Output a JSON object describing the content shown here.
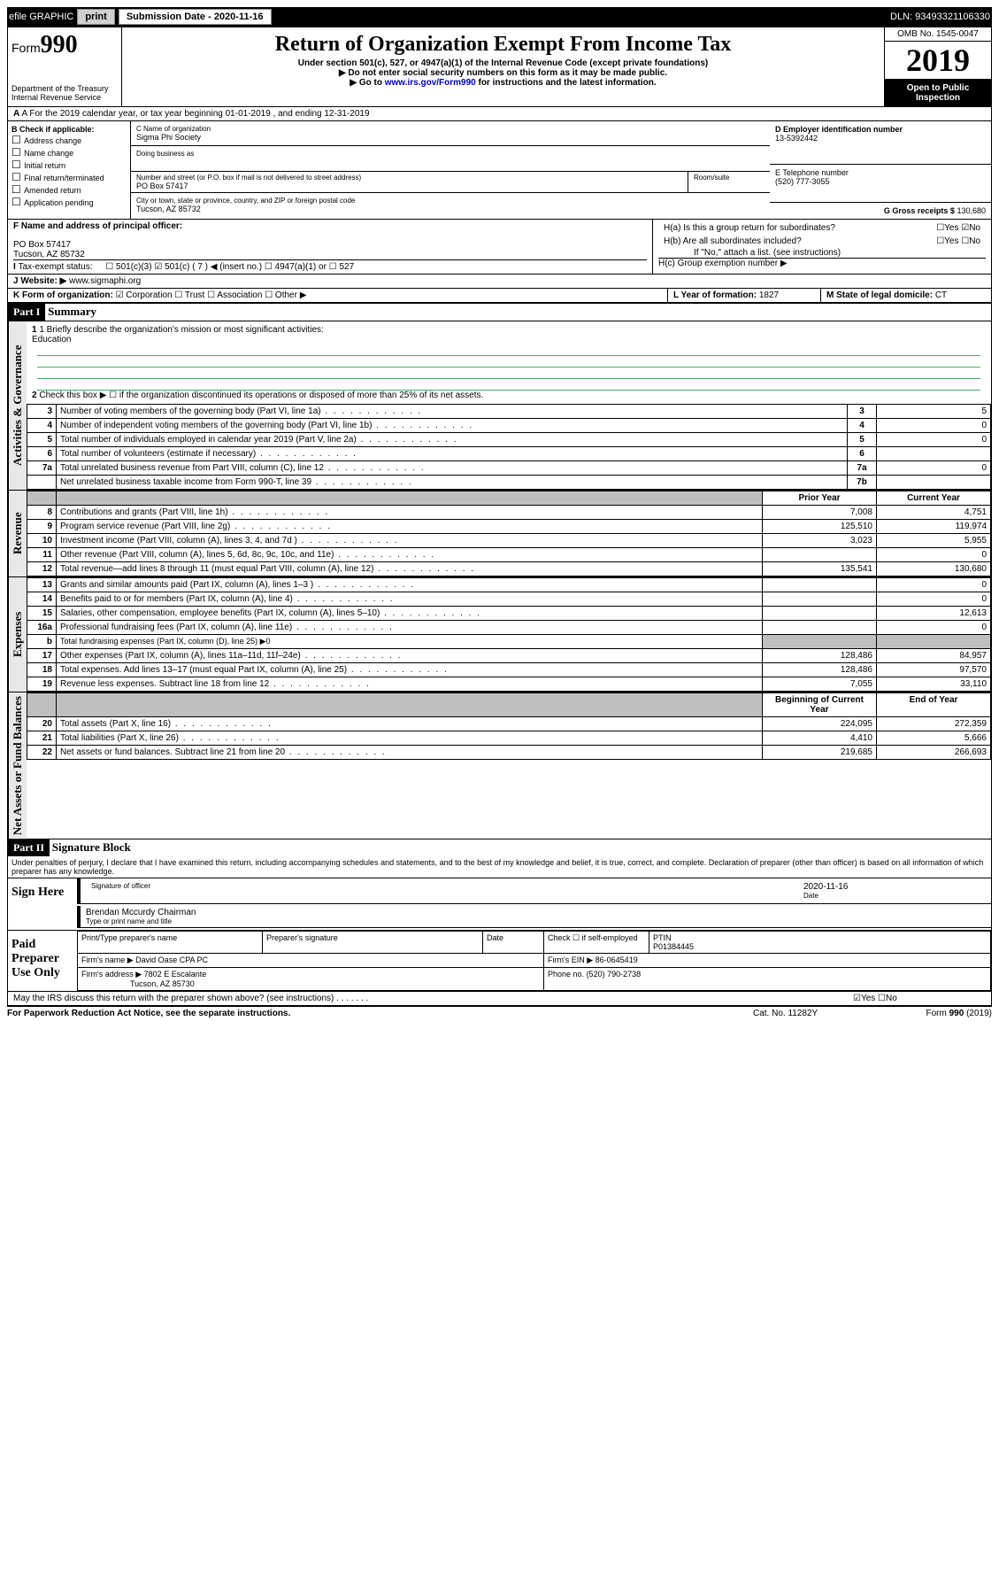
{
  "topbar": {
    "efile": "efile GRAPHIC",
    "print": "print",
    "sub_label": "Submission Date - 2020-11-16",
    "dln": "DLN: 93493321106330"
  },
  "header": {
    "form_word": "Form",
    "form_num": "990",
    "dept": "Department of the Treasury\nInternal Revenue Service",
    "title": "Return of Organization Exempt From Income Tax",
    "sub1": "Under section 501(c), 527, or 4947(a)(1) of the Internal Revenue Code (except private foundations)",
    "sub2": "Do not enter social security numbers on this form as it may be made public.",
    "sub3_a": "Go to ",
    "sub3_link": "www.irs.gov/Form990",
    "sub3_b": " for instructions and the latest information.",
    "omb": "OMB No. 1545-0047",
    "year": "2019",
    "open": "Open to Public Inspection"
  },
  "rowA": "A For the 2019 calendar year, or tax year beginning 01-01-2019   , and ending 12-31-2019",
  "boxB": {
    "intro": "B Check if applicable:",
    "items": [
      "Address change",
      "Name change",
      "Initial return",
      "Final return/terminated",
      "Amended return",
      "Application pending"
    ]
  },
  "boxC": {
    "label": "C Name of organization",
    "name": "Sigma Phi Society",
    "dba": "Doing business as",
    "addr_label": "Number and street (or P.O. box if mail is not delivered to street address)",
    "room": "Room/suite",
    "addr": "PO Box 57417",
    "city_label": "City or town, state or province, country, and ZIP or foreign postal code",
    "city": "Tucson, AZ  85732"
  },
  "boxD": {
    "label": "D Employer identification number",
    "val": "13-5392442"
  },
  "boxE": {
    "label": "E Telephone number",
    "val": "(520) 777-3055"
  },
  "boxG": {
    "label": "G Gross receipts $",
    "val": "130,680"
  },
  "boxF": {
    "label": "F  Name and address of principal officer:",
    "addr1": "PO Box 57417",
    "addr2": "Tucson, AZ  85732"
  },
  "boxH": {
    "a": "H(a)  Is this a group return for subordinates?",
    "a_yn": "☐Yes  ☑No",
    "b": "H(b)  Are all subordinates included?",
    "b_yn": "☐Yes  ☐No",
    "b_note": "If \"No,\" attach a list. (see instructions)",
    "c": "H(c)  Group exemption number ▶"
  },
  "boxI": {
    "label": "Tax-exempt status:",
    "opts": "☐ 501(c)(3)    ☑  501(c) ( 7 ) ◀ (insert no.)    ☐ 4947(a)(1) or   ☐ 527"
  },
  "boxJ": {
    "label": "J   Website: ▶",
    "val": "www.sigmaphi.org"
  },
  "boxK": {
    "label": "K Form of organization:",
    "opts": "☑ Corporation  ☐ Trust  ☐ Association  ☐ Other ▶"
  },
  "boxL": {
    "label": "L Year of formation:",
    "val": "1827"
  },
  "boxM": {
    "label": "M State of legal domicile:",
    "val": "CT"
  },
  "part1": {
    "hd": "Part I",
    "title": "Summary"
  },
  "summary": {
    "q1": "1  Briefly describe the organization's mission or most significant activities:",
    "q1a": "Education",
    "q2": "Check this box ▶ ☐  if the organization discontinued its operations or disposed of more than 25% of its net assets.",
    "lines": [
      {
        "n": "3",
        "d": "Number of voting members of the governing body (Part VI, line 1a)",
        "b": "3",
        "v": "5"
      },
      {
        "n": "4",
        "d": "Number of independent voting members of the governing body (Part VI, line 1b)",
        "b": "4",
        "v": "0"
      },
      {
        "n": "5",
        "d": "Total number of individuals employed in calendar year 2019 (Part V, line 2a)",
        "b": "5",
        "v": "0"
      },
      {
        "n": "6",
        "d": "Total number of volunteers (estimate if necessary)",
        "b": "6",
        "v": ""
      },
      {
        "n": "7a",
        "d": "Total unrelated business revenue from Part VIII, column (C), line 12",
        "b": "7a",
        "v": "0"
      },
      {
        "n": "",
        "d": "Net unrelated business taxable income from Form 990-T, line 39",
        "b": "7b",
        "v": ""
      }
    ],
    "py": "Prior Year",
    "cy": "Current Year",
    "revenue": [
      {
        "n": "8",
        "d": "Contributions and grants (Part VIII, line 1h)",
        "p": "7,008",
        "c": "4,751"
      },
      {
        "n": "9",
        "d": "Program service revenue (Part VIII, line 2g)",
        "p": "125,510",
        "c": "119,974"
      },
      {
        "n": "10",
        "d": "Investment income (Part VIII, column (A), lines 3, 4, and 7d )",
        "p": "3,023",
        "c": "5,955"
      },
      {
        "n": "11",
        "d": "Other revenue (Part VIII, column (A), lines 5, 6d, 8c, 9c, 10c, and 11e)",
        "p": "",
        "c": "0"
      },
      {
        "n": "12",
        "d": "Total revenue—add lines 8 through 11 (must equal Part VIII, column (A), line 12)",
        "p": "135,541",
        "c": "130,680"
      }
    ],
    "expenses": [
      {
        "n": "13",
        "d": "Grants and similar amounts paid (Part IX, column (A), lines 1–3 )",
        "p": "",
        "c": "0"
      },
      {
        "n": "14",
        "d": "Benefits paid to or for members (Part IX, column (A), line 4)",
        "p": "",
        "c": "0"
      },
      {
        "n": "15",
        "d": "Salaries, other compensation, employee benefits (Part IX, column (A), lines 5–10)",
        "p": "",
        "c": "12,613"
      },
      {
        "n": "16a",
        "d": "Professional fundraising fees (Part IX, column (A), line 11e)",
        "p": "",
        "c": "0"
      },
      {
        "n": "b",
        "d": "Total fundraising expenses (Part IX, column (D), line 25) ▶0",
        "p": "shade",
        "c": "shade"
      },
      {
        "n": "17",
        "d": "Other expenses (Part IX, column (A), lines 11a–11d, 11f–24e)",
        "p": "128,486",
        "c": "84,957"
      },
      {
        "n": "18",
        "d": "Total expenses. Add lines 13–17 (must equal Part IX, column (A), line 25)",
        "p": "128,486",
        "c": "97,570"
      },
      {
        "n": "19",
        "d": "Revenue less expenses. Subtract line 18 from line 12",
        "p": "7,055",
        "c": "33,110"
      }
    ],
    "bcy": "Beginning of Current Year",
    "eoy": "End of Year",
    "netassets": [
      {
        "n": "20",
        "d": "Total assets (Part X, line 16)",
        "p": "224,095",
        "c": "272,359"
      },
      {
        "n": "21",
        "d": "Total liabilities (Part X, line 26)",
        "p": "4,410",
        "c": "5,666"
      },
      {
        "n": "22",
        "d": "Net assets or fund balances. Subtract line 21 from line 20",
        "p": "219,685",
        "c": "266,693"
      }
    ]
  },
  "part2": {
    "hd": "Part II",
    "title": "Signature Block"
  },
  "perjury": "Under penalties of perjury, I declare that I have examined this return, including accompanying schedules and statements, and to the best of my knowledge and belief, it is true, correct, and complete. Declaration of preparer (other than officer) is based on all information of which preparer has any knowledge.",
  "sign": {
    "label": "Sign Here",
    "sig": "Signature of officer",
    "date": "2020-11-16",
    "date_lab": "Date",
    "name": "Brendan Mccurdy  Chairman",
    "name_lab": "Type or print name and title"
  },
  "prep": {
    "label": "Paid Preparer Use Only",
    "h1": "Print/Type preparer's name",
    "h2": "Preparer's signature",
    "h3": "Date",
    "h4": "Check ☐ if self-employed",
    "h5": "PTIN",
    "ptin": "P01384445",
    "firm_l": "Firm's name    ▶",
    "firm": "David Oase CPA PC",
    "ein_l": "Firm's EIN ▶",
    "ein": "86-0645419",
    "addr_l": "Firm's address ▶",
    "addr1": "7802 E Escalante",
    "addr2": "Tucson, AZ  85730",
    "phone_l": "Phone no.",
    "phone": "(520) 790-2738"
  },
  "discuss": "May the IRS discuss this return with the preparer shown above? (see instructions)",
  "discuss_yn": "☑Yes  ☐No",
  "footer": {
    "l": "For Paperwork Reduction Act Notice, see the separate instructions.",
    "m": "Cat. No. 11282Y",
    "r": "Form 990 (2019)"
  },
  "sidelabels": {
    "ag": "Activities & Governance",
    "rev": "Revenue",
    "exp": "Expenses",
    "na": "Net Assets or Fund Balances"
  }
}
